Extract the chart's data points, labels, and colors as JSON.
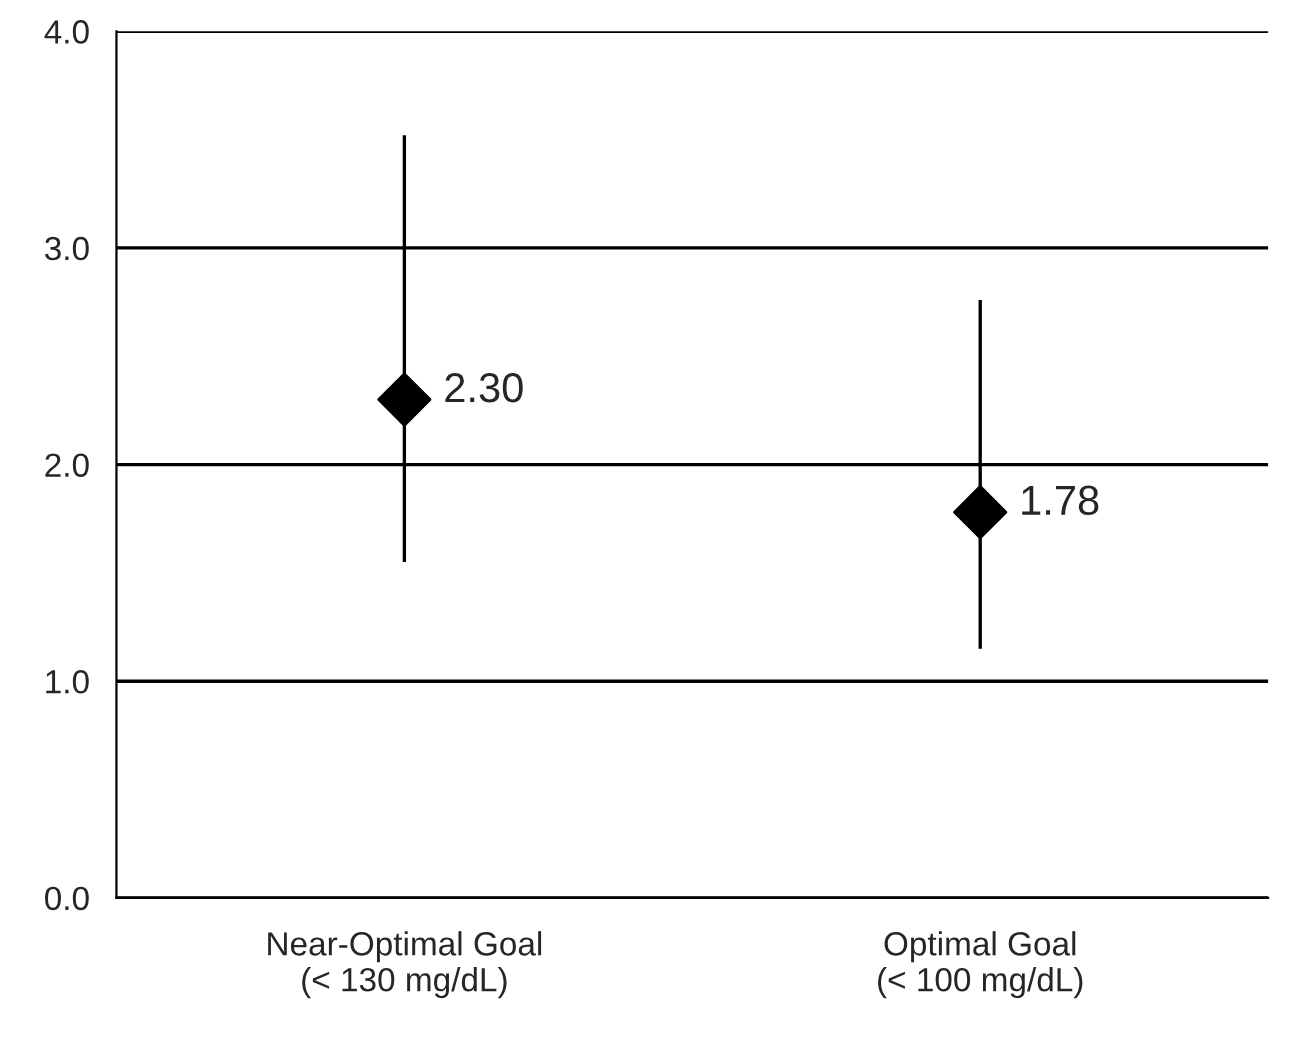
{
  "chart_data": {
    "type": "scatter",
    "categories": [
      "Near-Optimal Goal\n(< 130 mg/dL)",
      "Optimal Goal\n(< 100 mg/dL)"
    ],
    "series": [
      {
        "color": "#000000",
        "values": [
          2.3,
          1.78
        ],
        "errors": [
          [
            1.55,
            3.52
          ],
          [
            1.15,
            2.76
          ]
        ],
        "value_labels": [
          "2.30",
          "1.78"
        ]
      }
    ],
    "ylim": [
      0,
      4
    ],
    "yticks": [
      {
        "value": 0,
        "label": "0.0"
      },
      {
        "value": 1,
        "label": "1.0"
      },
      {
        "value": 2,
        "label": "2.0"
      },
      {
        "value": 3,
        "label": "3.0"
      },
      {
        "value": 4,
        "label": "4.0"
      }
    ],
    "grid": "y",
    "marker": "diamond",
    "legend": false
  }
}
